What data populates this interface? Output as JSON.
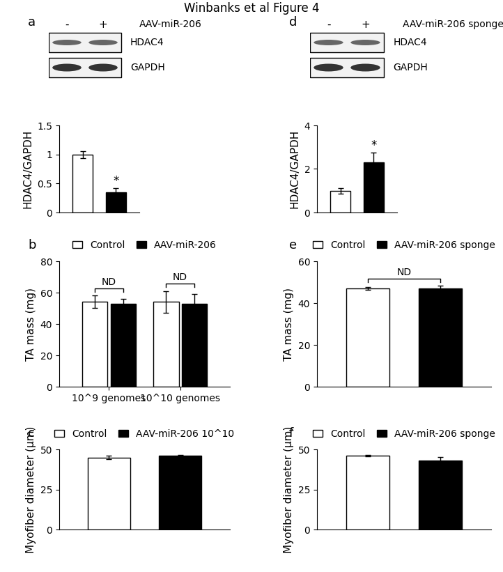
{
  "title": "Winbanks et al Figure 4",
  "blots": [
    {
      "panel": "a",
      "lanes": [
        "-",
        "+"
      ],
      "treatment": "AAV-miR-206",
      "bands": [
        "HDAC4",
        "GAPDH"
      ]
    },
    {
      "panel": "d",
      "lanes": [
        "-",
        "+"
      ],
      "treatment": "AAV-miR-206 sponge",
      "bands": [
        "HDAC4",
        "GAPDH"
      ]
    }
  ],
  "chart_data": [
    {
      "panel": "a",
      "type": "bar",
      "categories": [
        null,
        null
      ],
      "values": [
        1.0,
        0.35
      ],
      "errors": [
        0.06,
        0.07
      ],
      "colors": [
        "#ffffff",
        "#000000"
      ],
      "y_label": "HDAC4/GAPDH",
      "ylim": [
        0,
        1.5
      ],
      "yticks": [
        0,
        0.5,
        1,
        1.5
      ],
      "annotations": [
        {
          "text": "*",
          "from": 1,
          "to": 1
        }
      ]
    },
    {
      "panel": "b",
      "type": "bar",
      "categories": [
        "10^9 genomes",
        "10^10 genomes"
      ],
      "series": [
        {
          "name": "Control",
          "color": "#ffffff",
          "values": [
            54,
            54
          ],
          "errors": [
            4,
            7
          ]
        },
        {
          "name": "AAV-miR-206",
          "color": "#000000",
          "values": [
            53,
            53
          ],
          "errors": [
            3,
            6
          ]
        }
      ],
      "y_label": "TA mass (mg)",
      "ylim": [
        0,
        80
      ],
      "yticks": [
        0,
        20,
        40,
        60,
        80
      ],
      "legend": "top",
      "annotations": [
        {
          "text": "ND",
          "from": 0,
          "to": 0
        },
        {
          "text": "ND",
          "from": 1,
          "to": 1
        }
      ]
    },
    {
      "panel": "c",
      "type": "bar",
      "categories": [
        null,
        null
      ],
      "series": [
        {
          "name": "Control",
          "color": "#ffffff",
          "values": [
            45,
            null
          ],
          "errors": [
            1.2,
            null
          ]
        },
        {
          "name": "AAV-miR-206 10^10",
          "color": "#000000",
          "values": [
            null,
            46
          ],
          "errors": [
            null,
            0.7
          ]
        }
      ],
      "y_label": "Myofiber diameter (µm)",
      "ylim": [
        0,
        50
      ],
      "yticks": [
        0,
        25,
        50
      ],
      "legend": "top"
    },
    {
      "panel": "d",
      "type": "bar",
      "categories": [
        null,
        null
      ],
      "values": [
        1.0,
        2.3
      ],
      "errors": [
        0.12,
        0.45
      ],
      "colors": [
        "#ffffff",
        "#000000"
      ],
      "y_label": "HDAC4/GAPDH",
      "ylim": [
        0,
        4
      ],
      "yticks": [
        0,
        2,
        4
      ],
      "annotations": [
        {
          "text": "*",
          "from": 1,
          "to": 1
        }
      ]
    },
    {
      "panel": "e",
      "type": "bar",
      "categories": [
        null,
        null
      ],
      "series": [
        {
          "name": "Control",
          "color": "#ffffff",
          "values": [
            47,
            null
          ],
          "errors": [
            0.8,
            null
          ]
        },
        {
          "name": "AAV-miR-206 sponge",
          "color": "#000000",
          "values": [
            null,
            47
          ],
          "errors": [
            null,
            1.2
          ]
        }
      ],
      "y_label": "TA mass (mg)",
      "ylim": [
        0,
        60
      ],
      "yticks": [
        0,
        20,
        40,
        60
      ],
      "legend": "top",
      "annotations": [
        {
          "text": "ND",
          "from": 0,
          "to": 1
        }
      ]
    },
    {
      "panel": "f",
      "type": "bar",
      "categories": [
        null,
        null
      ],
      "series": [
        {
          "name": "Control",
          "color": "#ffffff",
          "values": [
            46,
            null
          ],
          "errors": [
            0.5,
            null
          ]
        },
        {
          "name": "AAV-miR-206 sponge",
          "color": "#000000",
          "values": [
            null,
            43
          ],
          "errors": [
            null,
            2.2
          ]
        }
      ],
      "y_label": "Myofiber diameter (µm)",
      "ylim": [
        0,
        50
      ],
      "yticks": [
        0,
        25,
        50
      ],
      "legend": "top"
    }
  ]
}
